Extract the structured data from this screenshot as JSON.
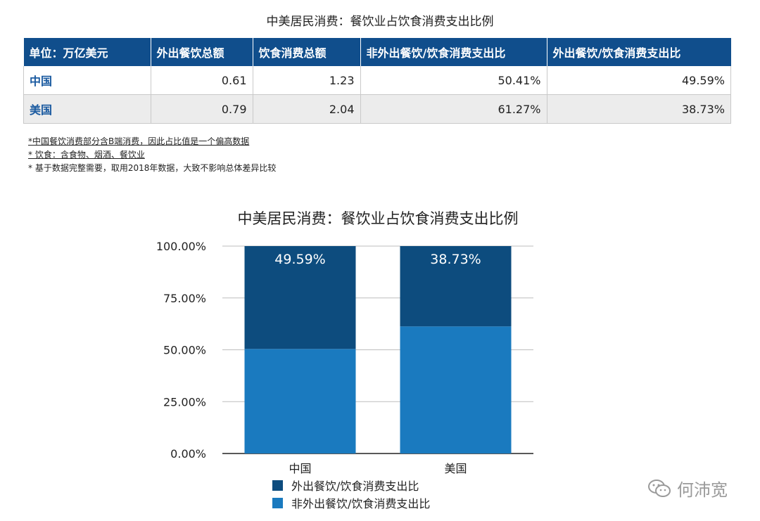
{
  "table": {
    "title": "中美居民消费：餐饮业占饮食消费支出比例",
    "headers": [
      "单位：万亿美元",
      "外出餐饮总额",
      "饮食消费总额",
      "非外出餐饮/饮食消费支出比",
      "外出餐饮/饮食消费支出比"
    ],
    "rows": [
      [
        "中国",
        "0.61",
        "1.23",
        "50.41%",
        "49.59%"
      ],
      [
        "美国",
        "0.79",
        "2.04",
        "61.27%",
        "38.73%"
      ]
    ]
  },
  "notes": [
    "*中国餐饮消费部分含B端消费，因此占比值是一个偏高数据",
    "* 饮食：含食物、烟酒、餐饮业",
    "* 基于数据完整需要，取用2018年数据，大致不影响总体差异比较"
  ],
  "watermark": {
    "text": "何沛宽",
    "icon": "wechat-icon"
  },
  "colors": {
    "header_bg": "#104e8c",
    "dark_series": "#0d4c7e",
    "light_series": "#1a7abf",
    "row_label": "#1a5aa0"
  },
  "chart_data": {
    "type": "bar",
    "stacked": true,
    "title": "中美居民消费：餐饮业占饮食消费支出比例",
    "categories": [
      "中国",
      "美国"
    ],
    "series": [
      {
        "name": "非外出餐饮/饮食消费支出比",
        "values": [
          50.41,
          61.27
        ],
        "color": "#1a7abf"
      },
      {
        "name": "外出餐饮/饮食消费支出比",
        "values": [
          49.59,
          38.73
        ],
        "color": "#0d4c7e"
      }
    ],
    "data_labels": [
      "49.59%",
      "38.73%"
    ],
    "yticks": [
      "0.00%",
      "25.00%",
      "50.00%",
      "75.00%",
      "100.00%"
    ],
    "ylim": [
      0,
      100
    ],
    "grid": true,
    "legend": "bottom"
  }
}
